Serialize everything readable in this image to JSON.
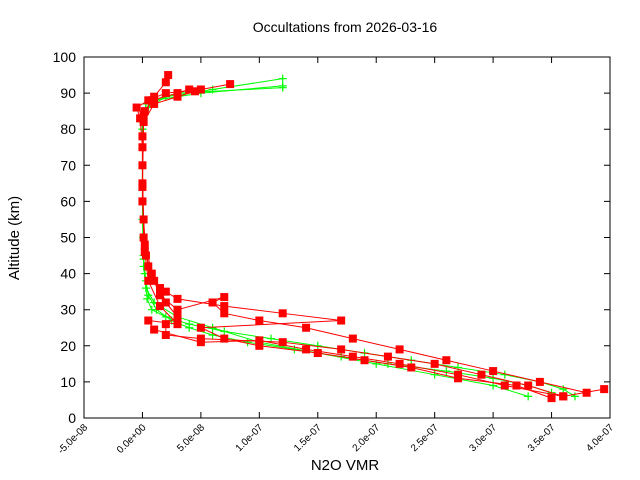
{
  "chart_data": {
    "type": "line",
    "title": "Occultations from 2026-03-16",
    "xlabel": "N2O VMR",
    "ylabel": "Altitude (km)",
    "xlim": [
      -5e-08,
      4e-07
    ],
    "ylim": [
      0,
      100
    ],
    "xticks": [
      "-5.0e-08",
      "0.0e+00",
      "5.0e-08",
      "1.0e-07",
      "1.5e-07",
      "2.0e-07",
      "2.5e-07",
      "3.0e-07",
      "3.5e-07",
      "4.0e-07"
    ],
    "xtick_values": [
      -5e-08,
      0,
      5e-08,
      1e-07,
      1.5e-07,
      2e-07,
      2.5e-07,
      3e-07,
      3.5e-07,
      4e-07
    ],
    "yticks": [
      "0",
      "10",
      "20",
      "30",
      "40",
      "50",
      "60",
      "70",
      "80",
      "90",
      "100"
    ],
    "ytick_values": [
      0,
      10,
      20,
      30,
      40,
      50,
      60,
      70,
      80,
      90,
      100
    ],
    "grid": false,
    "legend": "none",
    "series": [
      {
        "color": "#00ff00",
        "marker": "plus",
        "profiles": [
          [
            [
              3.7e-07,
              6
            ],
            [
              3.6e-07,
              8
            ],
            [
              3.4e-07,
              10
            ],
            [
              3.1e-07,
              12
            ],
            [
              2.7e-07,
              14
            ],
            [
              2.3e-07,
              16
            ],
            [
              1.9e-07,
              18
            ],
            [
              1.5e-07,
              20
            ],
            [
              1.1e-07,
              22
            ],
            [
              7e-08,
              24
            ],
            [
              4e-08,
              26
            ],
            [
              2e-08,
              28
            ],
            [
              8e-09,
              30
            ],
            [
              4e-09,
              33
            ],
            [
              3e-09,
              36
            ],
            [
              2e-09,
              40
            ],
            [
              1e-09,
              45
            ],
            [
              5e-10,
              50
            ],
            [
              2e-10,
              60
            ],
            [
              1e-10,
              70
            ],
            [
              0,
              80
            ],
            [
              2e-09,
              85
            ],
            [
              1e-08,
              88
            ],
            [
              5e-08,
              90
            ],
            [
              1.2e-07,
              92
            ]
          ],
          [
            [
              3.5e-07,
              7
            ],
            [
              3.3e-07,
              9
            ],
            [
              3e-07,
              11
            ],
            [
              2.6e-07,
              13
            ],
            [
              2.1e-07,
              15
            ],
            [
              1.7e-07,
              17
            ],
            [
              1.3e-07,
              19
            ],
            [
              9e-08,
              21
            ],
            [
              6e-08,
              23
            ],
            [
              4e-08,
              25
            ],
            [
              2.5e-08,
              27
            ],
            [
              1.2e-08,
              30
            ],
            [
              5e-09,
              34
            ],
            [
              3e-09,
              38
            ],
            [
              1e-09,
              44
            ],
            [
              0,
              55
            ],
            [
              0,
              70
            ],
            [
              1e-09,
              82
            ],
            [
              5e-09,
              86
            ],
            [
              2e-08,
              89
            ],
            [
              6e-08,
              91
            ],
            [
              1.2e-07,
              94
            ]
          ],
          [
            [
              3.3e-07,
              6
            ],
            [
              3e-07,
              9
            ],
            [
              2.5e-07,
              12
            ],
            [
              2e-07,
              15
            ],
            [
              1.5e-07,
              18
            ],
            [
              1e-07,
              21
            ],
            [
              6e-08,
              25
            ],
            [
              3e-08,
              28
            ],
            [
              1e-08,
              32
            ],
            [
              3e-09,
              36
            ],
            [
              1e-09,
              42
            ],
            [
              0,
              60
            ],
            [
              0,
              80
            ],
            [
              3e-09,
              87
            ],
            [
              3e-08,
              90
            ],
            [
              1.2e-07,
              91.5
            ]
          ]
        ]
      },
      {
        "color": "#ff0000",
        "marker": "square",
        "profiles": [
          [
            [
              3.95e-07,
              8
            ],
            [
              3.6e-07,
              6
            ],
            [
              3.3e-07,
              9
            ],
            [
              2.9e-07,
              12
            ],
            [
              2.5e-07,
              15
            ],
            [
              2.1e-07,
              17
            ],
            [
              1.7e-07,
              19
            ],
            [
              1.2e-07,
              21
            ],
            [
              5e-08,
              22
            ],
            [
              2e-08,
              23
            ],
            [
              2e-08,
              26
            ],
            [
              3e-08,
              28
            ],
            [
              2e-08,
              32
            ],
            [
              1.5e-08,
              36
            ],
            [
              8e-09,
              40
            ],
            [
              3e-09,
              45
            ],
            [
              1e-09,
              55
            ],
            [
              0,
              65
            ],
            [
              0,
              75
            ],
            [
              -2e-09,
              83
            ],
            [
              -5e-09,
              86
            ],
            [
              5e-09,
              88
            ],
            [
              2e-08,
              90
            ],
            [
              5e-08,
              91
            ],
            [
              7.5e-08,
              92.5
            ]
          ],
          [
            [
              3.5e-07,
              5.5
            ],
            [
              3.2e-07,
              9
            ],
            [
              2.7e-07,
              11
            ],
            [
              2.3e-07,
              14
            ],
            [
              1.9e-07,
              16
            ],
            [
              1.5e-07,
              18
            ],
            [
              1e-07,
              20
            ],
            [
              7e-08,
              22
            ],
            [
              5e-08,
              25
            ],
            [
              1.7e-07,
              27
            ],
            [
              1.2e-07,
              29
            ],
            [
              7e-08,
              31
            ],
            [
              3e-08,
              33
            ],
            [
              2e-08,
              35
            ],
            [
              1e-08,
              38
            ],
            [
              2e-09,
              48
            ],
            [
              0,
              60
            ],
            [
              0,
              78
            ],
            [
              2e-09,
              85
            ],
            [
              1e-08,
              89
            ],
            [
              2e-08,
              93
            ],
            [
              2.2e-08,
              95
            ]
          ],
          [
            [
              3.8e-07,
              7
            ],
            [
              3.4e-07,
              10
            ],
            [
              3e-07,
              13
            ],
            [
              2.6e-07,
              16
            ],
            [
              2.2e-07,
              19
            ],
            [
              1.8e-07,
              22
            ],
            [
              1.4e-07,
              25
            ],
            [
              1e-07,
              27
            ],
            [
              7e-08,
              29
            ],
            [
              6e-08,
              32
            ],
            [
              7e-08,
              33.5
            ],
            [
              3e-08,
              30
            ],
            [
              1.5e-08,
              34
            ],
            [
              5e-09,
              42
            ],
            [
              1e-09,
              50
            ],
            [
              0,
              70
            ],
            [
              1e-09,
              84
            ],
            [
              8e-09,
              88
            ],
            [
              3e-08,
              90
            ],
            [
              4e-08,
              91
            ]
          ],
          [
            [
              3.6e-07,
              6
            ],
            [
              3.1e-07,
              9
            ],
            [
              2.7e-07,
              12
            ],
            [
              2.2e-07,
              15
            ],
            [
              1.8e-07,
              17
            ],
            [
              1.4e-07,
              19
            ],
            [
              1e-07,
              21.5
            ],
            [
              5e-08,
              21
            ],
            [
              1e-08,
              24.5
            ],
            [
              5e-09,
              27
            ],
            [
              3e-08,
              26
            ],
            [
              1.5e-08,
              31
            ],
            [
              5e-09,
              38
            ],
            [
              2e-09,
              46
            ],
            [
              0,
              64
            ],
            [
              1e-09,
              82
            ],
            [
              1e-08,
              87
            ],
            [
              3e-08,
              89
            ],
            [
              4.5e-08,
              90.5
            ]
          ]
        ]
      }
    ]
  }
}
